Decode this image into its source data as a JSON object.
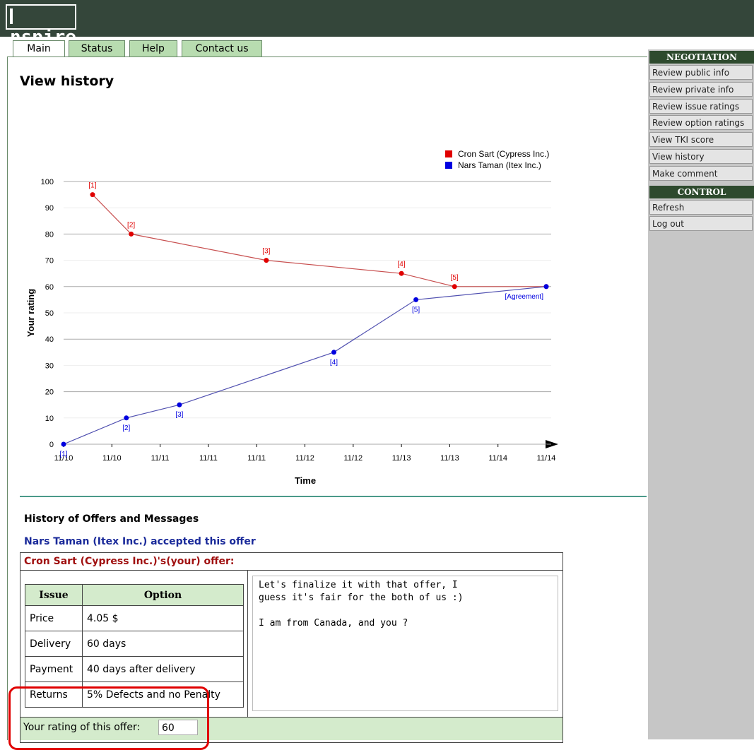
{
  "header": {
    "logo": "nspire"
  },
  "tabs": [
    "Main",
    "Status",
    "Help",
    "Contact us"
  ],
  "page_title": "View history",
  "chart_data": {
    "type": "line",
    "ylabel": "Your rating",
    "xlabel": "Time",
    "xlim": [
      0,
      10
    ],
    "xticks": [
      {
        "value": 0,
        "label": "11/10"
      },
      {
        "value": 1,
        "label": "11/10"
      },
      {
        "value": 2,
        "label": "11/11"
      },
      {
        "value": 3,
        "label": "11/11"
      },
      {
        "value": 4,
        "label": "11/11"
      },
      {
        "value": 5,
        "label": "11/12"
      },
      {
        "value": 6,
        "label": "11/12"
      },
      {
        "value": 7,
        "label": "11/13"
      },
      {
        "value": 8,
        "label": "11/13"
      },
      {
        "value": 9,
        "label": "11/14"
      },
      {
        "value": 10,
        "label": "11/14"
      }
    ],
    "ylim": [
      0,
      100
    ],
    "yticks": [
      0,
      10,
      20,
      30,
      40,
      50,
      60,
      70,
      80,
      90,
      100
    ],
    "grid": true,
    "series": [
      {
        "name": "Cron Sart (Cypress Inc.)",
        "color": "#e00000",
        "line_color": "#c85050",
        "x": [
          0.6,
          1.4,
          4.2,
          7.0,
          8.1,
          10
        ],
        "values": [
          95,
          80,
          70,
          65,
          60,
          60
        ],
        "point_labels": [
          "[1]",
          "[2]",
          "[3]",
          "[4]",
          "[5]",
          null
        ]
      },
      {
        "name": "Nars Taman (Itex Inc.)",
        "color": "#0000e0",
        "line_color": "#5050b0",
        "x": [
          0,
          1.3,
          2.4,
          5.6,
          7.3,
          10
        ],
        "values": [
          0,
          10,
          15,
          35,
          55,
          60
        ],
        "point_labels": [
          "[1]",
          "[2]",
          "[3]",
          "[4]",
          "[5]",
          "[Agreement]"
        ]
      }
    ]
  },
  "history": {
    "title": "History of Offers and Messages",
    "status": "Nars Taman (Itex Inc.) accepted this offer",
    "offer_title": "Cron Sart (Cypress Inc.)'s(your) offer:",
    "table": {
      "header": [
        "Issue",
        "Option"
      ],
      "rows": [
        [
          "Price",
          "4.05 $"
        ],
        [
          "Delivery",
          "60 days"
        ],
        [
          "Payment",
          "40 days after delivery"
        ],
        [
          "Returns",
          "5% Defects and no Penalty"
        ]
      ]
    },
    "message": "Let's finalize it with that offer, I\nguess it's fair for the both of us :)\n\nI am from Canada, and you ?",
    "rating_label": "Your rating of this offer:",
    "rating_value": "60"
  },
  "sidebar": {
    "sections": [
      {
        "title": "NEGOTIATION",
        "items": [
          "Review public info",
          "Review private info",
          "Review issue ratings",
          "Review option ratings",
          "View TKI score",
          "View history",
          "Make comment"
        ]
      },
      {
        "title": "CONTROL",
        "items": [
          "Refresh",
          "Log out"
        ]
      }
    ]
  }
}
